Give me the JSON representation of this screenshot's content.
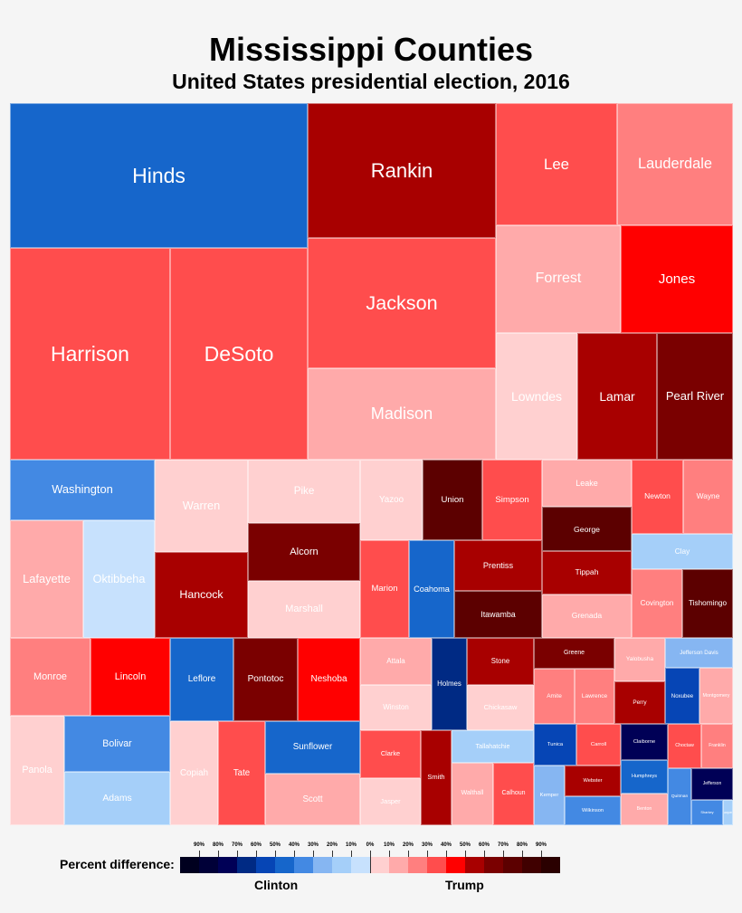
{
  "chart_data": {
    "type": "treemap",
    "title": "Mississippi Counties",
    "subtitle": "United States presidential election, 2016",
    "legend": {
      "label": "Percent difference:",
      "left_side": "Clinton",
      "right_side": "Trump",
      "clinton_ticks": [
        "90%",
        "80%",
        "70%",
        "60%",
        "50%",
        "40%",
        "30%",
        "20%",
        "10%"
      ],
      "center_tick": "0%",
      "trump_ticks": [
        "10%",
        "20%",
        "30%",
        "40%",
        "50%",
        "60%",
        "70%",
        "80%",
        "90%"
      ],
      "clinton_colors": [
        "#00001f",
        "#000038",
        "#000056",
        "#002a84",
        "#0645b5",
        "#1666cb",
        "#4389e3",
        "#86b6f2",
        "#a5cff9",
        "#c7e1fd"
      ],
      "trump_colors": [
        "#ffd0d0",
        "#ffaaaa",
        "#ff7f7f",
        "#ff4d4d",
        "#ff0000",
        "#a80000",
        "#7a0000",
        "#5c0000",
        "#400000",
        "#2a0000"
      ]
    },
    "counties": [
      {
        "name": "Hinds",
        "color": "#1666cb"
      },
      {
        "name": "Harrison",
        "color": "#ff4d4d"
      },
      {
        "name": "DeSoto",
        "color": "#ff4d4d"
      },
      {
        "name": "Rankin",
        "color": "#a80000"
      },
      {
        "name": "Jackson",
        "color": "#ff4d4d"
      },
      {
        "name": "Madison",
        "color": "#ffaaaa"
      },
      {
        "name": "Lee",
        "color": "#ff4d4d"
      },
      {
        "name": "Lauderdale",
        "color": "#ff7f7f"
      },
      {
        "name": "Forrest",
        "color": "#ffaaaa"
      },
      {
        "name": "Jones",
        "color": "#ff0000"
      },
      {
        "name": "Lowndes",
        "color": "#ffd0d0"
      },
      {
        "name": "Lamar",
        "color": "#a80000"
      },
      {
        "name": "Pearl River",
        "color": "#7a0000"
      },
      {
        "name": "Washington",
        "color": "#4389e3"
      },
      {
        "name": "Lafayette",
        "color": "#ffaaaa"
      },
      {
        "name": "Oktibbeha",
        "color": "#c7e1fd"
      },
      {
        "name": "Warren",
        "color": "#ffd0d0"
      },
      {
        "name": "Hancock",
        "color": "#a80000"
      },
      {
        "name": "Pike",
        "color": "#ffd0d0"
      },
      {
        "name": "Alcorn",
        "color": "#7a0000"
      },
      {
        "name": "Marshall",
        "color": "#ffd0d0"
      },
      {
        "name": "Yazoo",
        "color": "#ffd0d0"
      },
      {
        "name": "Union",
        "color": "#5c0000"
      },
      {
        "name": "Simpson",
        "color": "#ff4d4d"
      },
      {
        "name": "Marion",
        "color": "#ff4d4d"
      },
      {
        "name": "Coahoma",
        "color": "#1666cb"
      },
      {
        "name": "Prentiss",
        "color": "#a80000"
      },
      {
        "name": "Itawamba",
        "color": "#5c0000"
      },
      {
        "name": "Leake",
        "color": "#ffaaaa"
      },
      {
        "name": "George",
        "color": "#5c0000"
      },
      {
        "name": "Tippah",
        "color": "#a80000"
      },
      {
        "name": "Grenada",
        "color": "#ffaaaa"
      },
      {
        "name": "Newton",
        "color": "#ff4d4d"
      },
      {
        "name": "Wayne",
        "color": "#ff7f7f"
      },
      {
        "name": "Clay",
        "color": "#a5cff9"
      },
      {
        "name": "Covington",
        "color": "#ff7f7f"
      },
      {
        "name": "Tishomingo",
        "color": "#5c0000"
      },
      {
        "name": "Monroe",
        "color": "#ff7f7f"
      },
      {
        "name": "Panola",
        "color": "#ffd0d0"
      },
      {
        "name": "Lincoln",
        "color": "#ff0000"
      },
      {
        "name": "Bolivar",
        "color": "#4389e3"
      },
      {
        "name": "Adams",
        "color": "#a5cff9"
      },
      {
        "name": "Leflore",
        "color": "#1666cb"
      },
      {
        "name": "Copiah",
        "color": "#ffd0d0"
      },
      {
        "name": "Tate",
        "color": "#ff4d4d"
      },
      {
        "name": "Pontotoc",
        "color": "#7a0000"
      },
      {
        "name": "Neshoba",
        "color": "#ff0000"
      },
      {
        "name": "Sunflower",
        "color": "#1666cb"
      },
      {
        "name": "Scott",
        "color": "#ffaaaa"
      },
      {
        "name": "Attala",
        "color": "#ffaaaa"
      },
      {
        "name": "Winston",
        "color": "#ffd0d0"
      },
      {
        "name": "Clarke",
        "color": "#ff4d4d"
      },
      {
        "name": "Jasper",
        "color": "#ffd0d0"
      },
      {
        "name": "Holmes",
        "color": "#002a84"
      },
      {
        "name": "Smith",
        "color": "#a80000"
      },
      {
        "name": "Stone",
        "color": "#a80000"
      },
      {
        "name": "Chickasaw",
        "color": "#ffd0d0"
      },
      {
        "name": "Tallahatchie",
        "color": "#a5cff9"
      },
      {
        "name": "Walthall",
        "color": "#ffaaaa"
      },
      {
        "name": "Calhoun",
        "color": "#ff4d4d"
      },
      {
        "name": "Greene",
        "color": "#7a0000"
      },
      {
        "name": "Amite",
        "color": "#ff7f7f"
      },
      {
        "name": "Lawrence",
        "color": "#ff7f7f"
      },
      {
        "name": "Yalobusha",
        "color": "#ffaaaa"
      },
      {
        "name": "Perry",
        "color": "#a80000"
      },
      {
        "name": "Jefferson Davis",
        "color": "#86b6f2"
      },
      {
        "name": "Noxubee",
        "color": "#0645b5"
      },
      {
        "name": "Mont­gomery",
        "color": "#ffaaaa"
      },
      {
        "name": "Tunica",
        "color": "#0645b5"
      },
      {
        "name": "Kemper",
        "color": "#86b6f2"
      },
      {
        "name": "Carroll",
        "color": "#ff4d4d"
      },
      {
        "name": "Webster",
        "color": "#a80000"
      },
      {
        "name": "Wilkinson",
        "color": "#4389e3"
      },
      {
        "name": "Claiborne",
        "color": "#000056"
      },
      {
        "name": "Humphreys",
        "color": "#1666cb"
      },
      {
        "name": "Benton",
        "color": "#ffaaaa"
      },
      {
        "name": "Choctaw",
        "color": "#ff4d4d"
      },
      {
        "name": "Franklin",
        "color": "#ff7f7f"
      },
      {
        "name": "Quit­man",
        "color": "#4389e3"
      },
      {
        "name": "Jefferson",
        "color": "#000056"
      },
      {
        "name": "Sharkey",
        "color": "#4389e3"
      },
      {
        "name": "Issaquena",
        "color": "#a5cff9"
      }
    ]
  }
}
